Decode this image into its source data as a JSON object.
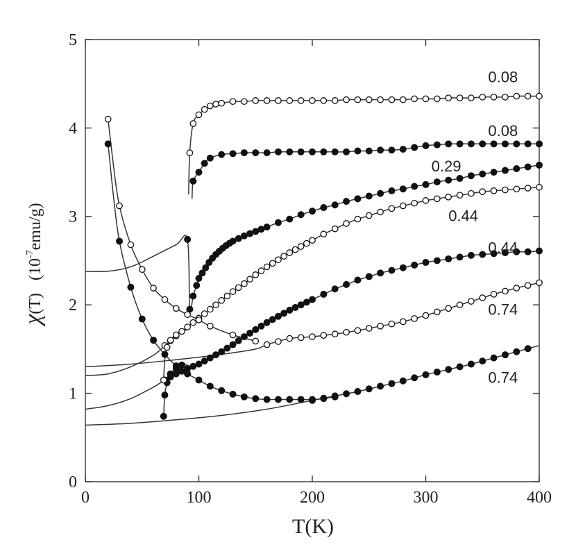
{
  "chart_data": {
    "type": "line",
    "title": "",
    "xlabel": "T(K)",
    "ylabel_symbol": "χ",
    "ylabel_rest": "(T)",
    "ylabel_unit_base": "10",
    "ylabel_unit_exp": "-7",
    "ylabel_unit_rest": "emu/g",
    "xlim": [
      0,
      400
    ],
    "ylim": [
      0,
      5
    ],
    "xticks": [
      0,
      100,
      200,
      300,
      400
    ],
    "yticks": [
      0,
      1,
      2,
      3,
      4,
      5
    ],
    "grid": false,
    "legend": "none",
    "series": [
      {
        "name": "0.08 (open)",
        "label": "0.08",
        "marker": "open",
        "label_at": [
          355,
          4.58
        ],
        "x": [
          91,
          92,
          95,
          100,
          105,
          110,
          115,
          120,
          130,
          140,
          150,
          160,
          170,
          180,
          190,
          200,
          210,
          220,
          230,
          240,
          250,
          260,
          270,
          280,
          290,
          300,
          310,
          320,
          330,
          340,
          350,
          360,
          370,
          380,
          390,
          400
        ],
        "y": [
          3.25,
          3.72,
          4.05,
          4.15,
          4.21,
          4.25,
          4.27,
          4.28,
          4.3,
          4.3,
          4.31,
          4.31,
          4.31,
          4.31,
          4.31,
          4.31,
          4.31,
          4.31,
          4.32,
          4.32,
          4.32,
          4.32,
          4.32,
          4.32,
          4.33,
          4.33,
          4.33,
          4.34,
          4.34,
          4.34,
          4.35,
          4.35,
          4.35,
          4.36,
          4.36,
          4.36
        ],
        "marker_x": [
          92,
          95,
          100,
          105,
          110,
          115,
          120,
          130,
          140,
          150,
          160,
          170,
          180,
          190,
          200,
          210,
          220,
          230,
          240,
          250,
          260,
          270,
          280,
          290,
          300,
          310,
          320,
          330,
          340,
          350,
          360,
          370,
          380,
          390,
          400
        ]
      },
      {
        "name": "0.08 (filled)",
        "label": "0.08",
        "marker": "filled",
        "label_at": [
          355,
          3.97
        ],
        "x": [
          94,
          95,
          100,
          105,
          110,
          120,
          130,
          140,
          150,
          160,
          170,
          180,
          190,
          200,
          210,
          220,
          230,
          240,
          250,
          260,
          270,
          280,
          290,
          300,
          310,
          320,
          330,
          340,
          350,
          360,
          370,
          380,
          390,
          400
        ],
        "y": [
          3.2,
          3.4,
          3.5,
          3.6,
          3.66,
          3.7,
          3.71,
          3.72,
          3.72,
          3.72,
          3.73,
          3.73,
          3.73,
          3.73,
          3.73,
          3.73,
          3.73,
          3.74,
          3.74,
          3.75,
          3.75,
          3.76,
          3.78,
          3.8,
          3.81,
          3.82,
          3.82,
          3.82,
          3.82,
          3.82,
          3.82,
          3.82,
          3.82,
          3.82
        ],
        "marker_x": [
          95,
          100,
          105,
          110,
          120,
          130,
          140,
          150,
          160,
          170,
          180,
          190,
          200,
          210,
          220,
          230,
          240,
          250,
          260,
          270,
          280,
          290,
          300,
          310,
          320,
          330,
          340,
          350,
          360,
          370,
          380,
          390,
          400
        ]
      },
      {
        "name": "0.29 (filled)",
        "label": "0.29",
        "marker": "filled",
        "label_at": [
          305,
          3.57
        ],
        "x": [
          0,
          20,
          40,
          60,
          80,
          90,
          92,
          95,
          98,
          100,
          105,
          110,
          115,
          120,
          125,
          130,
          140,
          150,
          160,
          170,
          180,
          190,
          200,
          210,
          220,
          230,
          240,
          250,
          260,
          270,
          280,
          290,
          300,
          310,
          320,
          330,
          340,
          350,
          360,
          370,
          380,
          390,
          400
        ],
        "y": [
          2.38,
          2.38,
          2.43,
          2.55,
          2.68,
          2.74,
          1.95,
          2.1,
          2.22,
          2.3,
          2.4,
          2.5,
          2.57,
          2.63,
          2.68,
          2.72,
          2.78,
          2.83,
          2.88,
          2.93,
          2.97,
          3.02,
          3.06,
          3.1,
          3.13,
          3.17,
          3.2,
          3.23,
          3.26,
          3.29,
          3.31,
          3.34,
          3.36,
          3.39,
          3.41,
          3.43,
          3.46,
          3.48,
          3.5,
          3.52,
          3.54,
          3.56,
          3.58
        ],
        "marker_x": [
          90,
          92,
          95,
          98,
          100,
          103,
          106,
          109,
          112,
          115,
          118,
          121,
          124,
          127,
          130,
          135,
          140,
          145,
          150,
          155,
          160,
          170,
          180,
          190,
          200,
          210,
          220,
          230,
          240,
          250,
          260,
          270,
          280,
          290,
          300,
          310,
          320,
          330,
          340,
          350,
          360,
          370,
          380,
          390,
          400
        ]
      },
      {
        "name": "0.44 (open)",
        "label": "0.44",
        "marker": "open",
        "label_at": [
          320,
          3.01
        ],
        "x": [
          0,
          20,
          40,
          60,
          70,
          80,
          90,
          100,
          110,
          120,
          130,
          140,
          150,
          160,
          170,
          180,
          190,
          200,
          210,
          220,
          230,
          240,
          250,
          260,
          270,
          280,
          290,
          300,
          310,
          320,
          330,
          340,
          350,
          360,
          370,
          380,
          390,
          400
        ],
        "y": [
          1.2,
          1.22,
          1.3,
          1.43,
          1.54,
          1.65,
          1.75,
          1.85,
          1.95,
          2.05,
          2.15,
          2.24,
          2.34,
          2.43,
          2.51,
          2.59,
          2.66,
          2.73,
          2.8,
          2.86,
          2.92,
          2.97,
          3.01,
          3.05,
          3.09,
          3.12,
          3.15,
          3.18,
          3.2,
          3.22,
          3.24,
          3.26,
          3.28,
          3.29,
          3.3,
          3.31,
          3.32,
          3.33
        ],
        "marker_x": [
          70,
          75,
          80,
          85,
          90,
          95,
          100,
          105,
          110,
          115,
          120,
          125,
          130,
          135,
          140,
          145,
          150,
          155,
          160,
          165,
          170,
          175,
          180,
          185,
          190,
          195,
          200,
          210,
          220,
          230,
          240,
          250,
          260,
          270,
          280,
          290,
          300,
          310,
          320,
          330,
          340,
          350,
          360,
          370,
          380,
          390,
          400
        ]
      },
      {
        "name": "0.44 (filled)",
        "label": "0.44",
        "marker": "filled",
        "label_at": [
          355,
          2.65
        ],
        "x": [
          0,
          20,
          40,
          60,
          70,
          80,
          90,
          100,
          110,
          120,
          130,
          140,
          150,
          160,
          170,
          180,
          190,
          200,
          210,
          220,
          230,
          240,
          250,
          260,
          270,
          280,
          290,
          300,
          310,
          320,
          330,
          340,
          350,
          360,
          370,
          380,
          390,
          400
        ],
        "y": [
          0.82,
          0.86,
          0.94,
          1.07,
          1.15,
          1.22,
          1.28,
          1.33,
          1.4,
          1.47,
          1.55,
          1.64,
          1.72,
          1.8,
          1.87,
          1.94,
          2.0,
          2.06,
          2.12,
          2.18,
          2.23,
          2.28,
          2.32,
          2.36,
          2.39,
          2.42,
          2.45,
          2.48,
          2.5,
          2.52,
          2.54,
          2.56,
          2.57,
          2.58,
          2.59,
          2.6,
          2.6,
          2.61
        ],
        "marker_x": [
          70,
          75,
          80,
          85,
          90,
          95,
          100,
          105,
          110,
          115,
          120,
          125,
          130,
          135,
          140,
          145,
          150,
          155,
          160,
          165,
          170,
          175,
          180,
          185,
          190,
          195,
          200,
          210,
          220,
          230,
          240,
          250,
          260,
          270,
          280,
          290,
          300,
          310,
          320,
          330,
          340,
          350,
          360,
          370,
          380,
          390,
          400
        ]
      },
      {
        "name": "0.74 (open)",
        "label": "0.74",
        "marker": "open",
        "label_at": [
          355,
          1.95
        ],
        "x": [
          0,
          40,
          80,
          120,
          150,
          160,
          180,
          200,
          220,
          240,
          260,
          280,
          300,
          320,
          340,
          360,
          380,
          400
        ],
        "y": [
          1.3,
          1.33,
          1.38,
          1.44,
          1.5,
          1.55,
          1.62,
          1.64,
          1.67,
          1.71,
          1.76,
          1.81,
          1.88,
          1.96,
          2.04,
          2.12,
          2.19,
          2.25
        ],
        "marker_x": [
          160,
          170,
          180,
          190,
          200,
          210,
          220,
          230,
          240,
          250,
          260,
          270,
          280,
          290,
          300,
          310,
          320,
          330,
          340,
          350,
          360,
          370,
          380,
          390,
          400
        ]
      },
      {
        "name": "0.74 (filled)",
        "label": "0.74",
        "marker": "filled",
        "label_at": [
          355,
          1.18
        ],
        "x": [
          0,
          40,
          80,
          120,
          160,
          200,
          220,
          240,
          260,
          280,
          300,
          320,
          340,
          360,
          380,
          400
        ],
        "y": [
          0.64,
          0.66,
          0.7,
          0.75,
          0.82,
          0.92,
          0.97,
          1.02,
          1.08,
          1.14,
          1.21,
          1.27,
          1.33,
          1.4,
          1.47,
          1.54
        ],
        "marker_x": [
          200,
          210,
          220,
          230,
          240,
          250,
          260,
          270,
          280,
          290,
          300,
          310,
          320,
          330,
          340,
          350,
          360,
          370,
          380,
          390
        ]
      },
      {
        "name": "low-T upturn (open)",
        "label": "",
        "marker": "open",
        "x": [
          20,
          25,
          30,
          40,
          50,
          60,
          70,
          80,
          90,
          100,
          110,
          130,
          150
        ],
        "y": [
          4.1,
          3.55,
          3.12,
          2.68,
          2.4,
          2.19,
          2.06,
          1.96,
          1.89,
          1.83,
          1.76,
          1.66,
          1.59
        ],
        "marker_x": [
          20,
          30,
          40,
          50,
          60,
          70,
          80,
          90,
          100,
          110,
          130,
          150
        ]
      },
      {
        "name": "low-T upturn (filled)",
        "label": "",
        "marker": "filled",
        "x": [
          20,
          25,
          30,
          40,
          50,
          60,
          70,
          80,
          90,
          100,
          110,
          120,
          130,
          140,
          150,
          160,
          170,
          180,
          190,
          200,
          210,
          220
        ],
        "y": [
          3.82,
          3.2,
          2.72,
          2.2,
          1.84,
          1.6,
          1.44,
          1.31,
          1.22,
          1.15,
          1.08,
          1.03,
          0.99,
          0.96,
          0.94,
          0.93,
          0.93,
          0.93,
          0.93,
          0.93,
          0.94,
          0.96
        ],
        "marker_x": [
          20,
          30,
          40,
          50,
          60,
          70,
          80,
          90,
          100,
          110,
          120,
          130,
          140,
          150,
          160,
          170,
          180,
          190,
          200,
          210,
          220
        ]
      },
      {
        "name": "sc-drop (filled)",
        "label": "",
        "marker": "filled",
        "x": [
          69,
          70,
          72,
          75,
          80,
          85,
          90
        ],
        "y": [
          0.74,
          0.98,
          1.12,
          1.22,
          1.28,
          1.32,
          1.33
        ],
        "marker_x": [
          69,
          70,
          72,
          75,
          80,
          85
        ]
      },
      {
        "name": "sc-drop (open)",
        "label": "",
        "marker": "open",
        "x": [
          69,
          70,
          72,
          75,
          80,
          85,
          90
        ],
        "y": [
          1.15,
          1.38,
          1.52,
          1.6,
          1.66,
          1.7,
          1.72
        ],
        "marker_x": [
          69,
          72,
          75,
          80
        ]
      }
    ]
  }
}
